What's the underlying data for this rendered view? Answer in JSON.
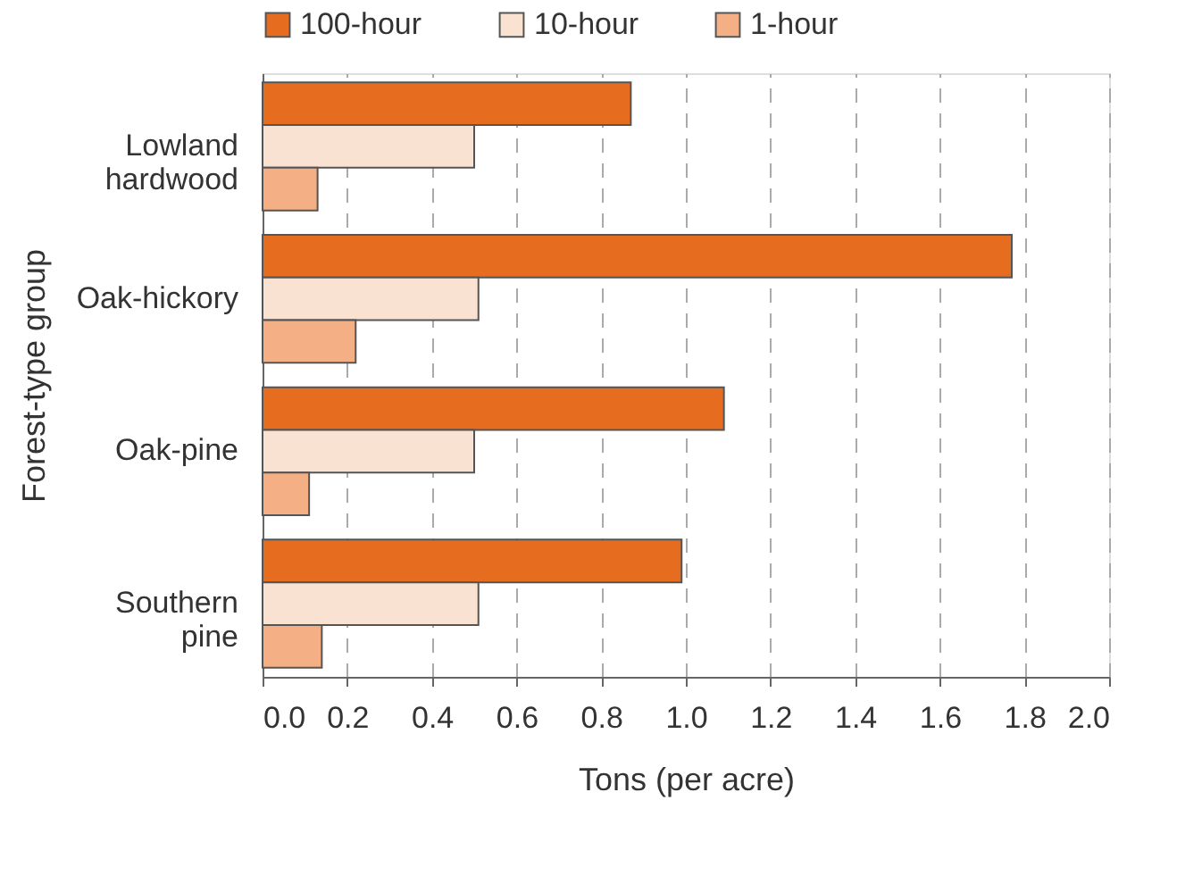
{
  "chart_data": {
    "type": "bar",
    "orientation": "horizontal",
    "xlabel": "Tons (per acre)",
    "ylabel": "Forest-type group",
    "categories": [
      "Lowland hardwood",
      "Oak-hickory",
      "Oak-pine",
      "Southern pine"
    ],
    "series": [
      {
        "name": "100-hour",
        "color": "#e66d20",
        "values": [
          0.87,
          1.77,
          1.09,
          0.99
        ]
      },
      {
        "name": "10-hour",
        "color": "#fae2d3",
        "values": [
          0.5,
          0.51,
          0.5,
          0.51
        ]
      },
      {
        "name": "1-hour",
        "color": "#f4b084",
        "values": [
          0.13,
          0.22,
          0.11,
          0.14
        ]
      }
    ],
    "xlim": [
      0,
      2.0
    ],
    "xticks": [
      {
        "value": 0,
        "label": "0.0"
      },
      0.2,
      0.4,
      0.6,
      0.8,
      {
        "value": 1,
        "label": "1.0"
      },
      1.2,
      1.4,
      1.6,
      1.8,
      {
        "value": 2,
        "label": "2.0"
      }
    ],
    "grid": "x",
    "legend": "top"
  }
}
